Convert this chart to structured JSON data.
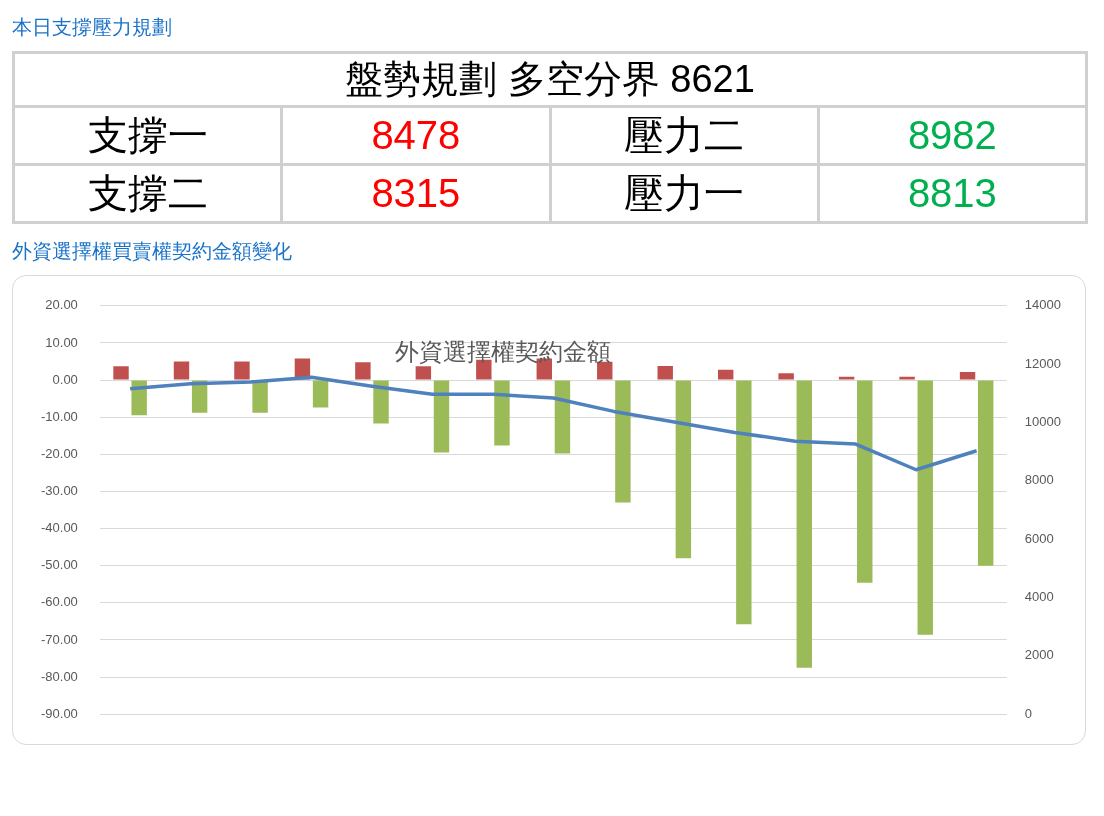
{
  "chart_data": [
    {
      "type": "other",
      "title": "本日支撐壓力規劃",
      "subtitle": "盤勢規劃 多空分界 8621",
      "annotations": [
        "支撐一",
        "8478",
        "壓力二",
        "8982",
        "支撐二",
        "8315",
        "壓力一",
        "8813"
      ],
      "colors": [
        "#000000",
        "#ff0000",
        "#000000",
        "#00b050",
        "#000000",
        "#ff0000",
        "#000000",
        "#00b050"
      ]
    },
    {
      "type": "bar",
      "title": "外資選擇權買賣權契約金額變化",
      "subtitle": "外資選擇權契約金額",
      "categories": [
        null,
        null,
        null,
        null,
        null,
        null,
        null,
        null,
        null,
        null,
        null,
        null,
        null,
        null,
        null
      ],
      "series": [
        {
          "color": "#c0504d",
          "values": [
            3.7,
            5.0,
            5.0,
            5.8,
            4.8,
            3.7,
            5.5,
            5.8,
            4.9,
            3.8,
            2.8,
            1.8,
            0.9,
            0.9,
            2.2
          ]
        },
        {
          "color": "#9bbb59",
          "values": [
            -9.5,
            -8.8,
            -8.8,
            -7.4,
            -11.7,
            -19.5,
            -17.6,
            -19.8,
            -33,
            -48,
            -65.8,
            -77.5,
            -54.6,
            -68.6,
            -50
          ]
        },
        {
          "type": "line",
          "axis": "y2",
          "color": "#4f81bd",
          "marker": "none",
          "values": [
            11160,
            11330,
            11390,
            11550,
            11240,
            10970,
            10970,
            10840,
            10380,
            10020,
            9660,
            9360,
            9260,
            8380,
            9030
          ]
        }
      ],
      "ylim": [
        -90,
        20
      ],
      "yticks": [
        {
          "value": -90,
          "label": "-90.00"
        },
        {
          "value": -80,
          "label": "-80.00"
        },
        {
          "value": -70,
          "label": "-70.00"
        },
        {
          "value": -60,
          "label": "-60.00"
        },
        {
          "value": -50,
          "label": "-50.00"
        },
        {
          "value": -40,
          "label": "-40.00"
        },
        {
          "value": -30,
          "label": "-30.00"
        },
        {
          "value": -20,
          "label": "-20.00"
        },
        {
          "value": -10,
          "label": "-10.00"
        },
        {
          "value": 0,
          "label": "0.00"
        },
        {
          "value": 10,
          "label": "10.00"
        },
        {
          "value": 20,
          "label": "20.00"
        }
      ],
      "y2lim": [
        0,
        14000
      ],
      "y2ticks": [
        0,
        2000,
        4000,
        6000,
        8000,
        10000,
        12000,
        14000
      ],
      "grid": "y",
      "legend": false
    }
  ]
}
